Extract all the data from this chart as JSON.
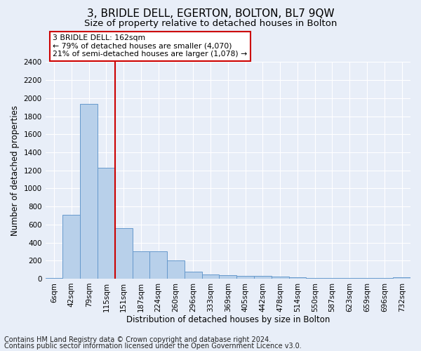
{
  "title": "3, BRIDLE DELL, EGERTON, BOLTON, BL7 9QW",
  "subtitle": "Size of property relative to detached houses in Bolton",
  "xlabel": "Distribution of detached houses by size in Bolton",
  "ylabel": "Number of detached properties",
  "footer_line1": "Contains HM Land Registry data © Crown copyright and database right 2024.",
  "footer_line2": "Contains public sector information licensed under the Open Government Licence v3.0.",
  "categories": [
    "6sqm",
    "42sqm",
    "79sqm",
    "115sqm",
    "151sqm",
    "187sqm",
    "224sqm",
    "260sqm",
    "296sqm",
    "333sqm",
    "369sqm",
    "405sqm",
    "442sqm",
    "478sqm",
    "514sqm",
    "550sqm",
    "587sqm",
    "623sqm",
    "659sqm",
    "696sqm",
    "732sqm"
  ],
  "values": [
    10,
    710,
    1940,
    1230,
    560,
    305,
    305,
    200,
    75,
    45,
    35,
    30,
    30,
    20,
    15,
    10,
    5,
    5,
    5,
    5,
    15
  ],
  "bar_color": "#b8d0ea",
  "bar_edge_color": "#6699cc",
  "ylim": [
    0,
    2400
  ],
  "yticks": [
    0,
    200,
    400,
    600,
    800,
    1000,
    1200,
    1400,
    1600,
    1800,
    2000,
    2200,
    2400
  ],
  "vline_x": 3.5,
  "annotation_text": "3 BRIDLE DELL: 162sqm\n← 79% of detached houses are smaller (4,070)\n21% of semi-detached houses are larger (1,078) →",
  "annotation_box_color": "white",
  "annotation_box_edge_color": "#cc0000",
  "vline_color": "#cc0000",
  "background_color": "#e8eef8",
  "plot_bg_color": "#e8eef8",
  "grid_color": "white",
  "title_fontsize": 11,
  "subtitle_fontsize": 9.5,
  "label_fontsize": 8.5,
  "tick_fontsize": 7.5,
  "footer_fontsize": 7
}
